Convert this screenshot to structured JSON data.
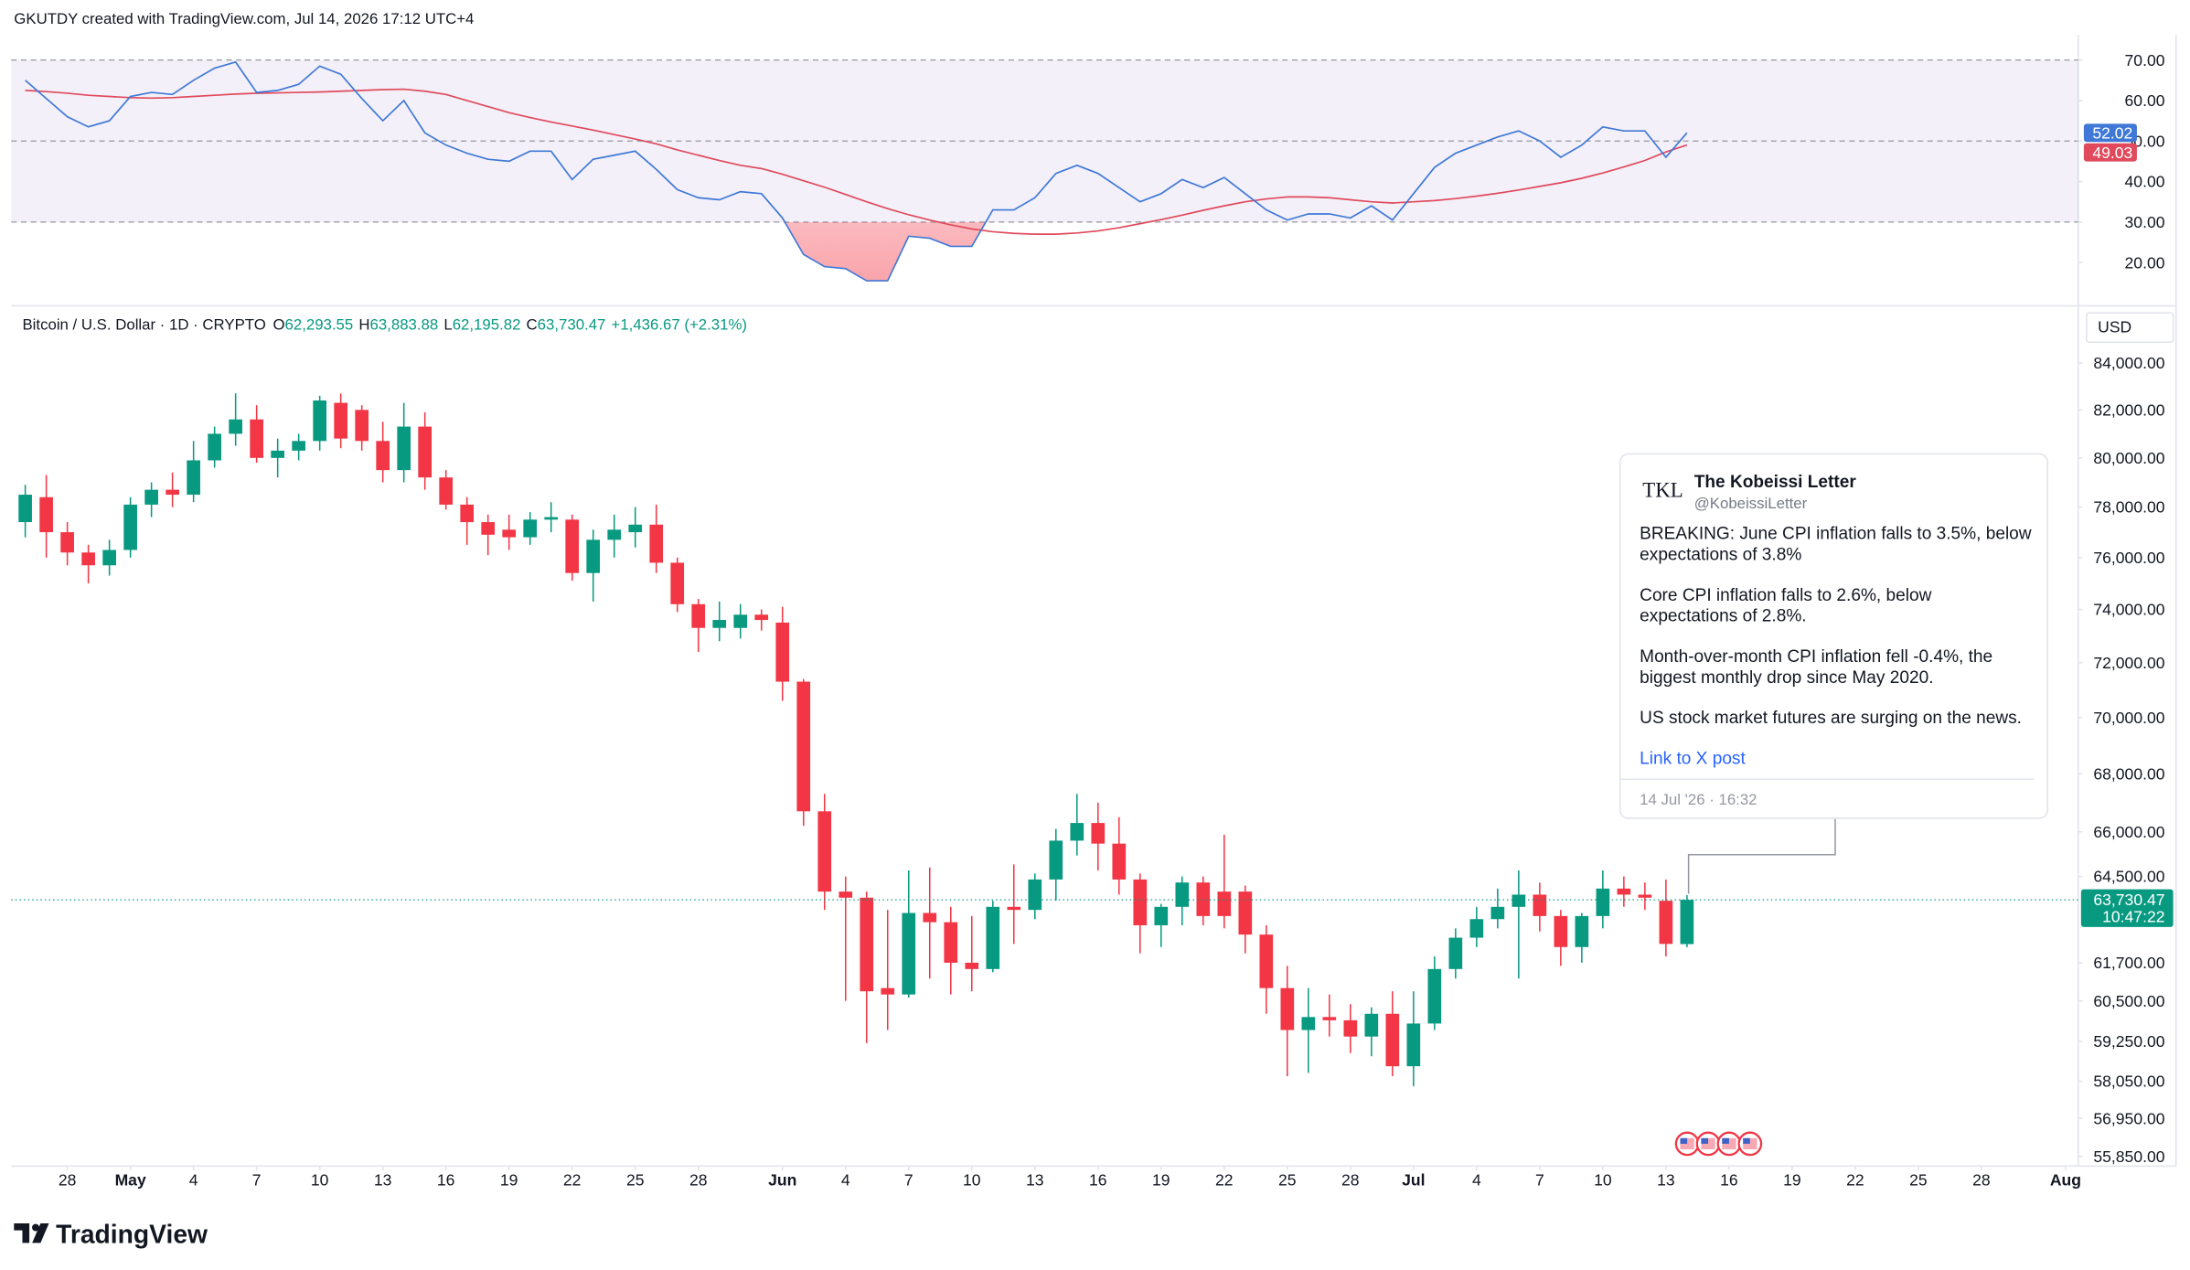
{
  "header": "GKUTDY created with TradingView.com, Jul 14, 2026 17:12 UTC+4",
  "brand": "TradingView",
  "chart_data": {
    "type": "candlestick",
    "symbol": "Bitcoin / U.S. Dollar · 1D · CRYPTO",
    "ohlc_legend": [
      {
        "label": "O",
        "value": "62,293.55"
      },
      {
        "label": "H",
        "value": "63,883.88"
      },
      {
        "label": "L",
        "value": "62,195.82"
      },
      {
        "label": "C",
        "value": "63,730.47"
      }
    ],
    "change": "+1,436.67 (+2.31%)",
    "currency": "USD",
    "last_price_label": "63,730.47",
    "countdown": "10:47:22",
    "up_color": "#089981",
    "down_color": "#f23645",
    "log": true,
    "xlim": [
      "2026-04-25",
      "2026-08-02"
    ],
    "ylim": [
      55570,
      84910
    ],
    "yticks": [
      {
        "value": 84000,
        "label": "84,000.00"
      },
      {
        "value": 82000,
        "label": "82,000.00"
      },
      {
        "value": 80000,
        "label": "80,000.00"
      },
      {
        "value": 78000,
        "label": "78,000.00"
      },
      {
        "value": 76000,
        "label": "76,000.00"
      },
      {
        "value": 74000,
        "label": "74,000.00"
      },
      {
        "value": 72000,
        "label": "72,000.00"
      },
      {
        "value": 70000,
        "label": "70,000.00"
      },
      {
        "value": 68000,
        "label": "68,000.00"
      },
      {
        "value": 66000,
        "label": "66,000.00"
      },
      {
        "value": 64500,
        "label": "64,500.00"
      },
      {
        "value": 61700,
        "label": "61,700.00"
      },
      {
        "value": 60500,
        "label": "60,500.00"
      },
      {
        "value": 59250,
        "label": "59,250.00"
      },
      {
        "value": 58050,
        "label": "58,050.00"
      },
      {
        "value": 56950,
        "label": "56,950.00"
      },
      {
        "value": 55850,
        "label": "55,850.00"
      }
    ],
    "xticks": [
      {
        "value": "2026-04-28",
        "label": "28"
      },
      {
        "value": "2026-05-01",
        "label": "May"
      },
      {
        "value": "2026-05-04",
        "label": "4"
      },
      {
        "value": "2026-05-07",
        "label": "7"
      },
      {
        "value": "2026-05-10",
        "label": "10"
      },
      {
        "value": "2026-05-13",
        "label": "13"
      },
      {
        "value": "2026-05-16",
        "label": "16"
      },
      {
        "value": "2026-05-19",
        "label": "19"
      },
      {
        "value": "2026-05-22",
        "label": "22"
      },
      {
        "value": "2026-05-25",
        "label": "25"
      },
      {
        "value": "2026-05-28",
        "label": "28"
      },
      {
        "value": "2026-06-01",
        "label": "Jun"
      },
      {
        "value": "2026-06-04",
        "label": "4"
      },
      {
        "value": "2026-06-07",
        "label": "7"
      },
      {
        "value": "2026-06-10",
        "label": "10"
      },
      {
        "value": "2026-06-13",
        "label": "13"
      },
      {
        "value": "2026-06-16",
        "label": "16"
      },
      {
        "value": "2026-06-19",
        "label": "19"
      },
      {
        "value": "2026-06-22",
        "label": "22"
      },
      {
        "value": "2026-06-25",
        "label": "25"
      },
      {
        "value": "2026-06-28",
        "label": "28"
      },
      {
        "value": "2026-07-01",
        "label": "Jul"
      },
      {
        "value": "2026-07-04",
        "label": "4"
      },
      {
        "value": "2026-07-07",
        "label": "7"
      },
      {
        "value": "2026-07-10",
        "label": "10"
      },
      {
        "value": "2026-07-13",
        "label": "13"
      },
      {
        "value": "2026-07-16",
        "label": "16"
      },
      {
        "value": "2026-07-19",
        "label": "19"
      },
      {
        "value": "2026-07-22",
        "label": "22"
      },
      {
        "value": "2026-07-25",
        "label": "25"
      },
      {
        "value": "2026-07-28",
        "label": "28"
      },
      {
        "value": "2026-08-01",
        "label": "Aug"
      }
    ],
    "x": [
      "2026-04-26",
      "2026-04-27",
      "2026-04-28",
      "2026-04-29",
      "2026-04-30",
      "2026-05-01",
      "2026-05-02",
      "2026-05-03",
      "2026-05-04",
      "2026-05-05",
      "2026-05-06",
      "2026-05-07",
      "2026-05-08",
      "2026-05-09",
      "2026-05-10",
      "2026-05-11",
      "2026-05-12",
      "2026-05-13",
      "2026-05-14",
      "2026-05-15",
      "2026-05-16",
      "2026-05-17",
      "2026-05-18",
      "2026-05-19",
      "2026-05-20",
      "2026-05-21",
      "2026-05-22",
      "2026-05-23",
      "2026-05-24",
      "2026-05-25",
      "2026-05-26",
      "2026-05-27",
      "2026-05-28",
      "2026-05-29",
      "2026-05-30",
      "2026-05-31",
      "2026-06-01",
      "2026-06-02",
      "2026-06-03",
      "2026-06-04",
      "2026-06-05",
      "2026-06-06",
      "2026-06-07",
      "2026-06-08",
      "2026-06-09",
      "2026-06-10",
      "2026-06-11",
      "2026-06-12",
      "2026-06-13",
      "2026-06-14",
      "2026-06-15",
      "2026-06-16",
      "2026-06-17",
      "2026-06-18",
      "2026-06-19",
      "2026-06-20",
      "2026-06-21",
      "2026-06-22",
      "2026-06-23",
      "2026-06-24",
      "2026-06-25",
      "2026-06-26",
      "2026-06-27",
      "2026-06-28",
      "2026-06-29",
      "2026-06-30",
      "2026-07-01",
      "2026-07-02",
      "2026-07-03",
      "2026-07-04",
      "2026-07-05",
      "2026-07-06",
      "2026-07-07",
      "2026-07-08",
      "2026-07-09",
      "2026-07-10",
      "2026-07-11",
      "2026-07-12",
      "2026-07-13",
      "2026-07-14"
    ],
    "open": [
      77400,
      78400,
      77000,
      76200,
      75700,
      76300,
      78100,
      78700,
      78500,
      79900,
      81000,
      81600,
      80000,
      80300,
      80700,
      82300,
      82000,
      80700,
      79500,
      81300,
      79200,
      78100,
      77400,
      77100,
      76800,
      77500,
      77500,
      75400,
      76700,
      77000,
      77300,
      75800,
      74200,
      73300,
      73300,
      73800,
      73500,
      71300,
      66700,
      64000,
      63800,
      60900,
      60700,
      63300,
      63000,
      61700,
      61500,
      63500,
      63400,
      64400,
      65700,
      66300,
      65600,
      64400,
      62900,
      63500,
      64300,
      64000,
      64000,
      62600,
      60900,
      59600,
      60000,
      59900,
      59400,
      60100,
      58500,
      59800,
      61500,
      62500,
      63100,
      63500,
      63900,
      63200,
      62200,
      63200,
      64100,
      63900,
      63700,
      62293.55
    ],
    "high": [
      78900,
      79300,
      77400,
      76500,
      76700,
      78400,
      79000,
      79400,
      80700,
      81300,
      82700,
      82200,
      80800,
      81000,
      82600,
      82700,
      82200,
      81500,
      82300,
      81900,
      79500,
      78400,
      77700,
      77700,
      77800,
      78200,
      77700,
      77100,
      77700,
      78000,
      78100,
      76000,
      74400,
      74300,
      74200,
      74000,
      74100,
      71400,
      67300,
      64500,
      64000,
      63400,
      64700,
      64800,
      63500,
      63200,
      63700,
      64900,
      64600,
      66100,
      67300,
      67000,
      66500,
      64600,
      63600,
      64500,
      64500,
      65900,
      64200,
      62900,
      61600,
      60900,
      60700,
      60400,
      60300,
      60800,
      60800,
      61900,
      62800,
      63500,
      64100,
      64700,
      64300,
      63400,
      63300,
      64700,
      64500,
      64300,
      64400,
      63883.88
    ],
    "low": [
      76800,
      76000,
      75700,
      75000,
      75300,
      76000,
      77600,
      78000,
      78200,
      79600,
      80500,
      79800,
      79200,
      79900,
      80300,
      80400,
      80300,
      79000,
      79000,
      78700,
      77900,
      76500,
      76100,
      76300,
      76500,
      77000,
      75100,
      74300,
      76000,
      76400,
      75400,
      73900,
      72400,
      72800,
      72900,
      73200,
      70600,
      66200,
      63400,
      60500,
      59200,
      59600,
      60600,
      61200,
      60700,
      60800,
      61400,
      62300,
      63100,
      63700,
      65200,
      64700,
      63900,
      62000,
      62200,
      62900,
      62900,
      62800,
      62000,
      60100,
      58200,
      58300,
      59400,
      58900,
      58800,
      58200,
      57900,
      59600,
      61200,
      62200,
      62800,
      61200,
      62700,
      61600,
      61700,
      62800,
      63500,
      63400,
      61900,
      62195.82
    ],
    "close": [
      78500,
      77000,
      76200,
      75700,
      76300,
      78100,
      78700,
      78500,
      79900,
      81000,
      81600,
      80000,
      80300,
      80700,
      82400,
      80800,
      80700,
      79500,
      81300,
      79200,
      78100,
      77400,
      76900,
      76800,
      77500,
      77600,
      75400,
      76700,
      77100,
      77300,
      75800,
      74200,
      73300,
      73600,
      73800,
      73600,
      71300,
      66700,
      64000,
      63800,
      60800,
      60700,
      63300,
      63000,
      61700,
      61500,
      63500,
      63400,
      64400,
      65700,
      66300,
      65600,
      64400,
      62900,
      63500,
      64300,
      63200,
      63200,
      62600,
      60900,
      59600,
      60000,
      59900,
      59400,
      60100,
      58500,
      59800,
      61500,
      62500,
      63100,
      63500,
      63900,
      63200,
      62200,
      63200,
      64100,
      63900,
      63800,
      62300,
      63730.47
    ],
    "rsi": {
      "type": "line",
      "ylim": [
        10,
        76.2
      ],
      "yticks": [
        {
          "value": 70,
          "label": "70.00"
        },
        {
          "value": 60,
          "label": "60.00"
        },
        {
          "value": 50,
          "label": "50.00"
        },
        {
          "value": 40,
          "label": "40.00"
        },
        {
          "value": 30,
          "label": "30.00"
        },
        {
          "value": 20,
          "label": "20.00"
        }
      ],
      "levels": [
        30,
        50,
        70
      ],
      "band_color": "#7e57c2",
      "oversold_color": "#f23645",
      "series": [
        {
          "color": "#3f78d6",
          "values": [
            65,
            60.5,
            56,
            53.5,
            55,
            61,
            62,
            61.5,
            65,
            68,
            69.5,
            62,
            62.5,
            64,
            68.5,
            66.5,
            60.5,
            55,
            60,
            52,
            49,
            47,
            45.5,
            45,
            47.5,
            47.5,
            40.5,
            45.5,
            46.5,
            47.5,
            43,
            38,
            36,
            35.5,
            37.5,
            37,
            31,
            22,
            19,
            18.5,
            15.5,
            15.5,
            26.5,
            26,
            24,
            24,
            33,
            33,
            36,
            42,
            44,
            42,
            38.5,
            35,
            37,
            40.5,
            38.5,
            41,
            37,
            33,
            30.5,
            32,
            32,
            31,
            34,
            30.5,
            37,
            43.5,
            47,
            49,
            51,
            52.5,
            50,
            46,
            49,
            53.5,
            52.5,
            52.5,
            46,
            52.02
          ]
        },
        {
          "color": "#e04a5c",
          "values": [
            62.5,
            62.2,
            61.8,
            61.3,
            61,
            60.7,
            60.6,
            60.7,
            61,
            61.3,
            61.6,
            61.8,
            61.9,
            62,
            62.1,
            62.3,
            62.5,
            62.7,
            62.8,
            62.3,
            61.5,
            60,
            58.5,
            57,
            55.8,
            54.7,
            53.7,
            52.7,
            51.6,
            50.5,
            49.3,
            47.8,
            46.5,
            45.2,
            44,
            43.2,
            41.8,
            40.2,
            38.6,
            36.8,
            35,
            33.3,
            31.8,
            30.5,
            29.3,
            28.3,
            27.6,
            27.2,
            27,
            27,
            27.3,
            27.8,
            28.6,
            29.6,
            30.6,
            31.7,
            32.9,
            34,
            35,
            35.7,
            36.2,
            36.2,
            36,
            35.5,
            35,
            34.7,
            35,
            35.3,
            35.8,
            36.4,
            37.1,
            37.9,
            38.8,
            39.7,
            40.8,
            42.1,
            43.6,
            45.2,
            47.3,
            49.03
          ]
        }
      ]
    }
  },
  "tweet": {
    "logo": "TKL",
    "author": "The Kobeissi Letter",
    "handle": "@KobeissiLetter",
    "paragraphs": [
      [
        "BREAKING: June CPI inflation falls to 3.5%, below",
        "expectations of 3.8%"
      ],
      [
        "Core CPI inflation falls to 2.6%, below",
        "expectations of 2.8%."
      ],
      [
        "Month-over-month CPI inflation fell -0.4%, the",
        "biggest monthly drop since May 2020."
      ],
      [
        "US stock market futures are surging on the news."
      ]
    ],
    "link": "Link to X post",
    "date": "14 Jul '26 · 16:32"
  }
}
